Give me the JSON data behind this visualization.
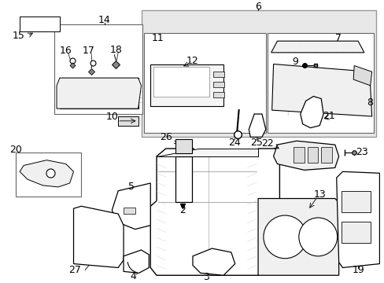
{
  "background_color": "#ffffff",
  "line_color": "#000000",
  "figsize": [
    4.89,
    3.6
  ],
  "dpi": 100,
  "gray_bg": "#e8e8e8",
  "label_fs": 9,
  "small_fs": 7
}
